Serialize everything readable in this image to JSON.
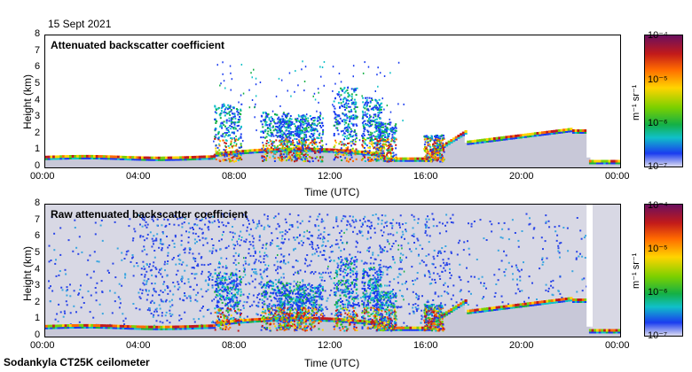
{
  "date": "15 Sept 2021",
  "footer": "Sodankyla CT25K ceilometer",
  "colorbar": {
    "unit": "m⁻¹ sr⁻¹",
    "ticks": [
      "10⁻⁴",
      "10⁻⁵",
      "10⁻⁶",
      "10⁻⁷"
    ]
  },
  "chart_data": [
    {
      "type": "heatmap",
      "title": "Attenuated backscatter coefficient",
      "xlabel": "Time (UTC)",
      "ylabel": "Height (km)",
      "xticks": [
        "00:00",
        "04:00",
        "08:00",
        "12:00",
        "16:00",
        "20:00",
        "00:00"
      ],
      "yticks": [
        "0",
        "1",
        "2",
        "3",
        "4",
        "5",
        "6",
        "7",
        "8"
      ],
      "xlim_hours": [
        0,
        24
      ],
      "ylim_km": [
        0,
        8
      ],
      "colorbar_range": [
        1e-07,
        0.0001
      ],
      "colorbar_scale": "log",
      "colors": {
        "background": "#ffffff",
        "high": "#c21a1a",
        "low": "#1a3cf0"
      }
    },
    {
      "type": "heatmap",
      "title": "Raw attenuated backscatter coefficient",
      "xlabel": "Time (UTC)",
      "ylabel": "Height (km)",
      "xticks": [
        "00:00",
        "04:00",
        "08:00",
        "12:00",
        "16:00",
        "20:00",
        "00:00"
      ],
      "yticks": [
        "0",
        "1",
        "2",
        "3",
        "4",
        "5",
        "6",
        "7",
        "8"
      ],
      "xlim_hours": [
        0,
        24
      ],
      "ylim_km": [
        0,
        8
      ],
      "colorbar_range": [
        1e-07,
        0.0001
      ],
      "colorbar_scale": "log",
      "colors": {
        "background": "#d8d8e4",
        "high": "#c21a1a",
        "low": "#1a3cf0"
      }
    }
  ]
}
